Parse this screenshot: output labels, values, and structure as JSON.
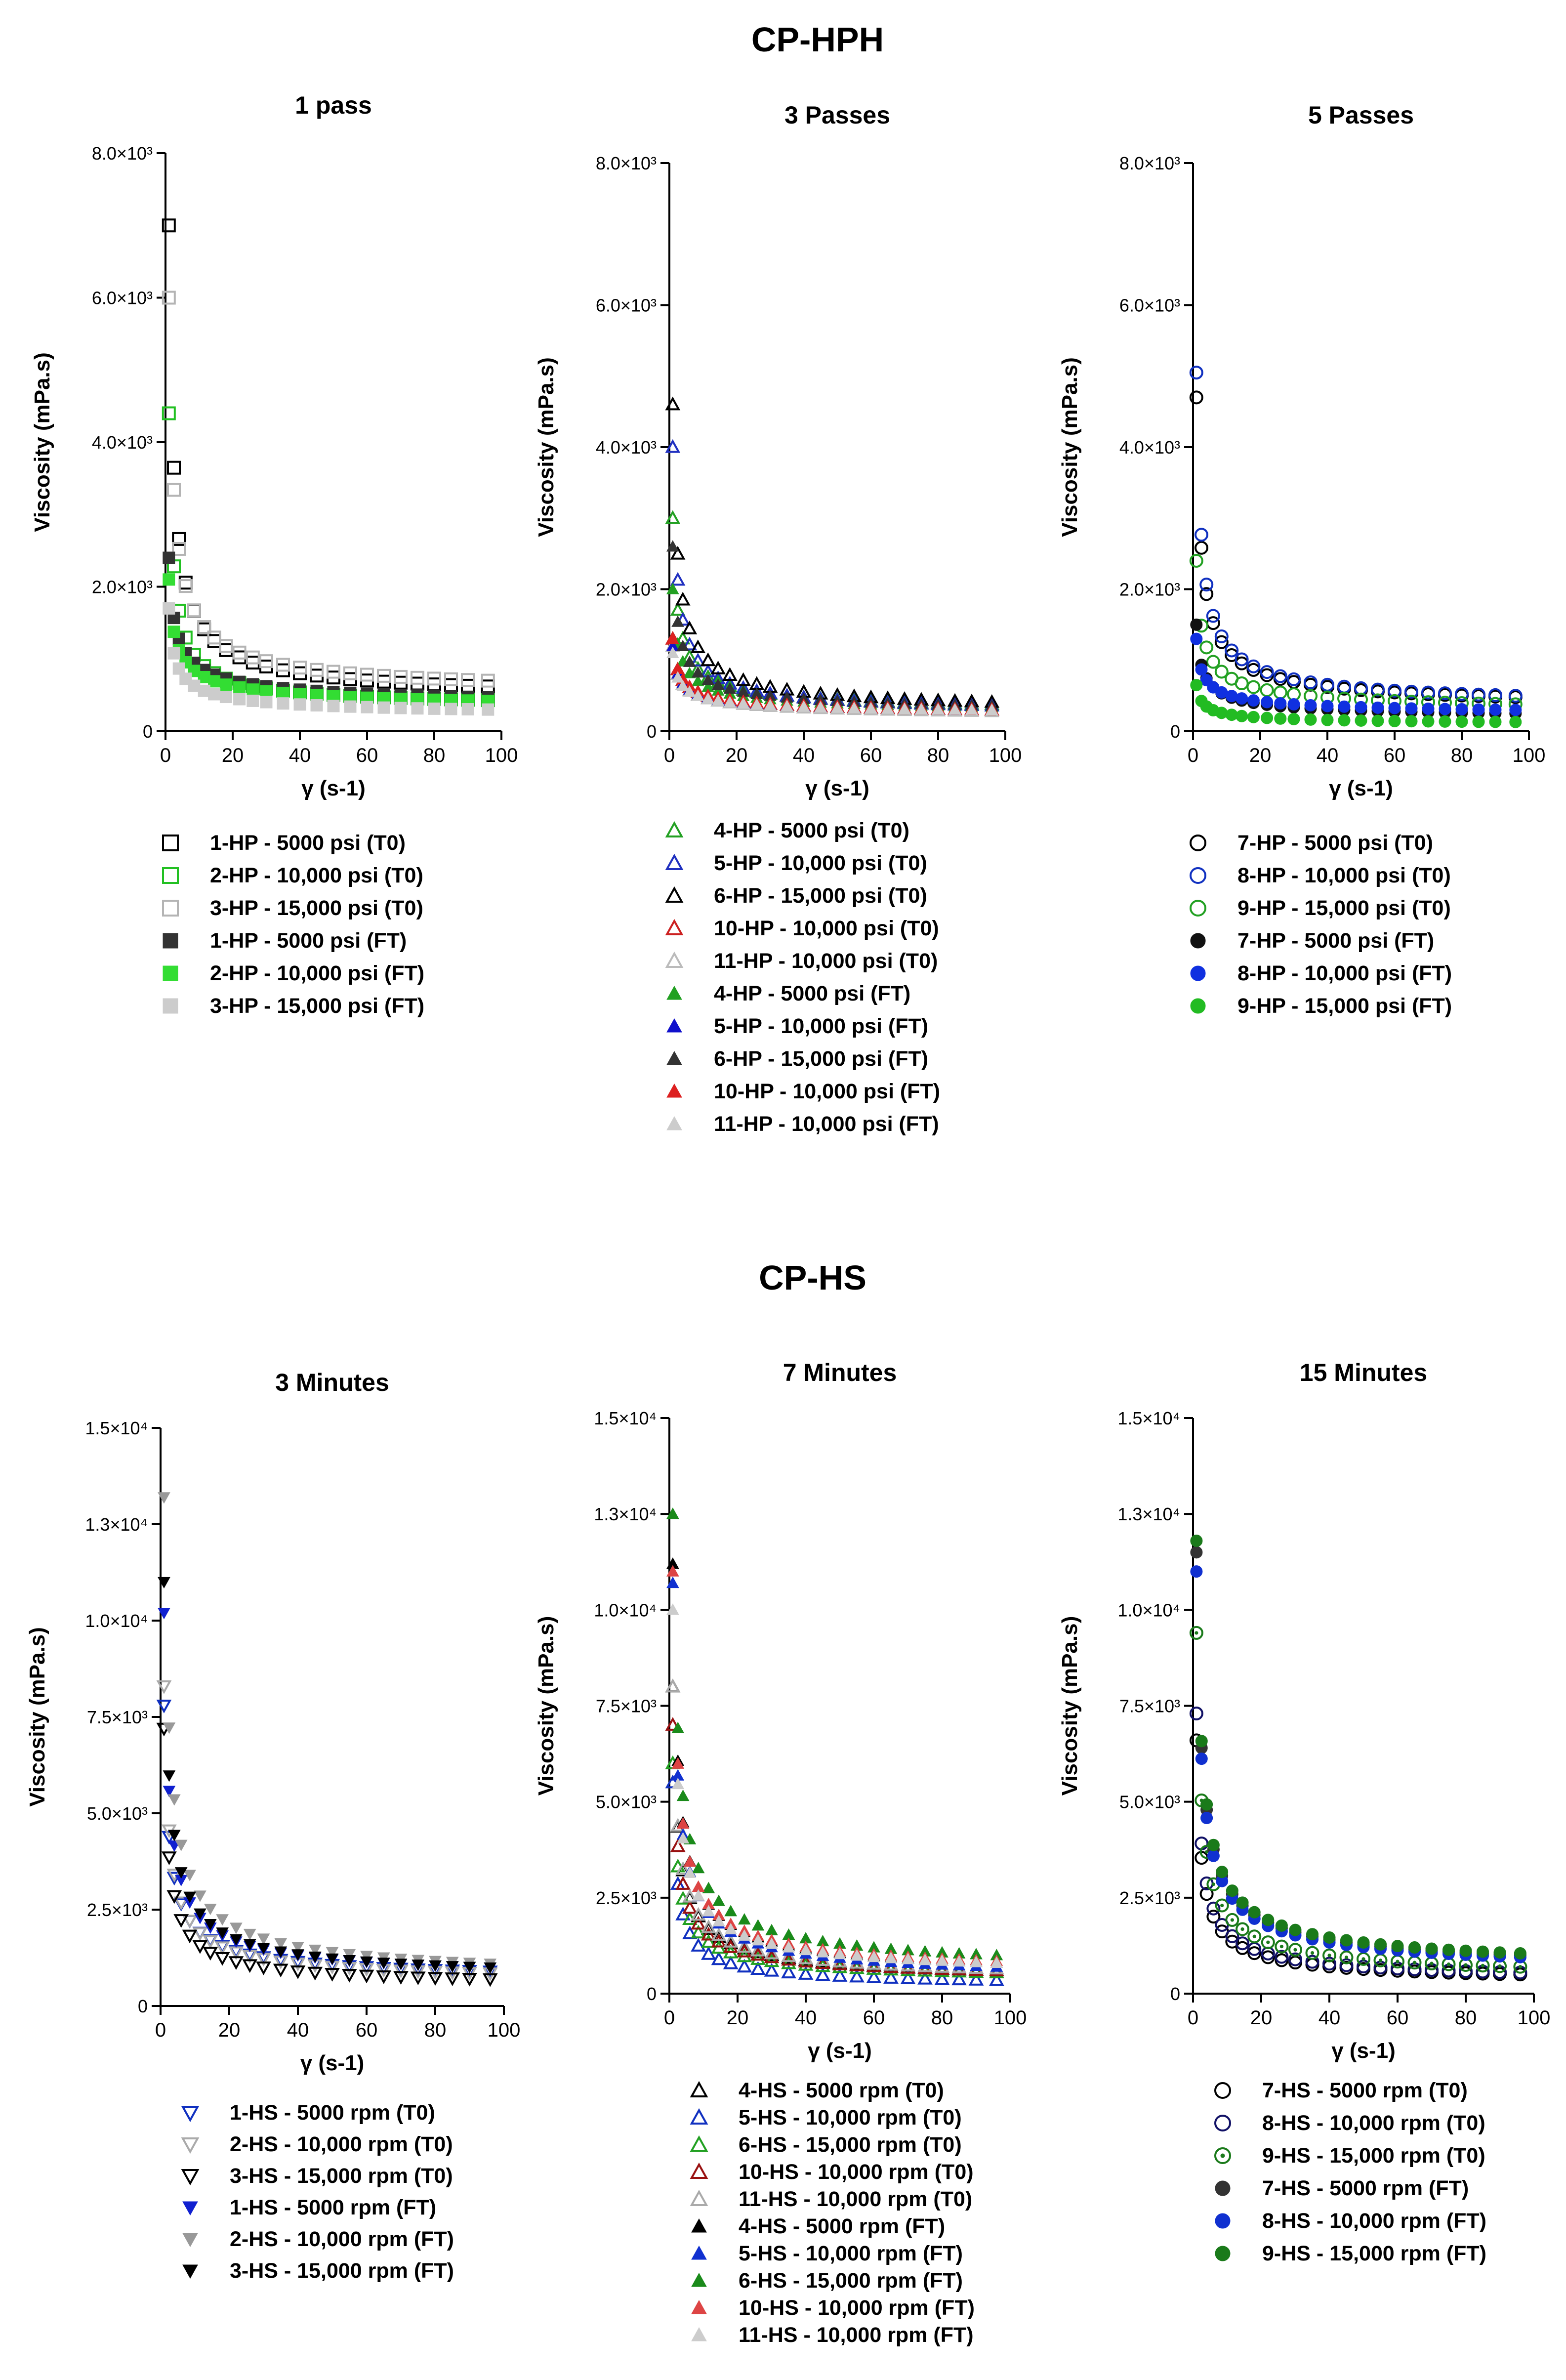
{
  "sections": [
    {
      "title": "CP-HPH"
    },
    {
      "title": "CP-HS"
    }
  ],
  "chart_data": [
    {
      "type": "scatter",
      "title": "1 pass",
      "xlabel": "γ (s-1)",
      "ylabel": "Viscosity (mPa.s)",
      "xlim": [
        0,
        100
      ],
      "ylim": [
        0,
        8000
      ],
      "xticks": [
        "0",
        "20",
        "40",
        "60",
        "80",
        "100"
      ],
      "yticks": [
        "0",
        "2.0×10³",
        "4.0×10³",
        "6.0×10³",
        "8.0×10³"
      ],
      "series": [
        {
          "name": "1-HP - 5000 psi (T0)",
          "marker": "square",
          "fill": "none",
          "color": "#000000",
          "y0": 7000,
          "yEnd": 620,
          "p": 0.78
        },
        {
          "name": "2-HP - 10,000 psi (T0)",
          "marker": "square",
          "fill": "none",
          "color": "#22c022",
          "y0": 4400,
          "yEnd": 430,
          "p": 0.8
        },
        {
          "name": "3-HP - 15,000 psi (T0)",
          "marker": "square",
          "fill": "none",
          "color": "#b4b4b4",
          "y0": 6000,
          "yEnd": 700,
          "p": 0.72
        },
        {
          "name": "1-HP - 5000 psi (FT)",
          "marker": "square",
          "fill": "solid",
          "color": "#333333",
          "y0": 2400,
          "yEnd": 470,
          "p": 0.55
        },
        {
          "name": "2-HP - 10,000 psi (FT)",
          "marker": "square",
          "fill": "solid",
          "color": "#33dd33",
          "y0": 2100,
          "yEnd": 420,
          "p": 0.55
        },
        {
          "name": "3-HP - 15,000 psi (FT)",
          "marker": "square",
          "fill": "solid",
          "color": "#cccccc",
          "y0": 1700,
          "yEnd": 300,
          "p": 0.58
        }
      ]
    },
    {
      "type": "scatter",
      "title": "3 Passes",
      "xlabel": "γ (s-1)",
      "ylabel": "Viscosity (mPa.s)",
      "xlim": [
        0,
        100
      ],
      "ylim": [
        0,
        8000
      ],
      "xticks": [
        "0",
        "20",
        "40",
        "60",
        "80",
        "100"
      ],
      "yticks": [
        "0",
        "2.0×10³",
        "4.0×10³",
        "6.0×10³",
        "8.0×10³"
      ],
      "series": [
        {
          "name": "4-HP - 5000 psi (T0)",
          "marker": "triangle",
          "fill": "none",
          "color": "#22a022",
          "y0": 3000,
          "yEnd": 380,
          "p": 0.7
        },
        {
          "name": "5-HP - 10,000 psi (T0)",
          "marker": "triangle",
          "fill": "none",
          "color": "#2030c0",
          "y0": 4000,
          "yEnd": 360,
          "p": 0.75
        },
        {
          "name": "6-HP - 15,000 psi (T0)",
          "marker": "triangle",
          "fill": "none",
          "color": "#000000",
          "y0": 4600,
          "yEnd": 410,
          "p": 0.72
        },
        {
          "name": "10-HP - 10,000 psi (T0)",
          "marker": "triangle",
          "fill": "none",
          "color": "#cc2020",
          "y0": 1300,
          "yEnd": 300,
          "p": 0.55
        },
        {
          "name": "11-HP - 10,000 psi (T0)",
          "marker": "triangle",
          "fill": "none",
          "color": "#bbbbbb",
          "y0": 1200,
          "yEnd": 280,
          "p": 0.55
        },
        {
          "name": "4-HP - 5000 psi (FT)",
          "marker": "triangle",
          "fill": "solid",
          "color": "#22a022",
          "y0": 2000,
          "yEnd": 340,
          "p": 0.62
        },
        {
          "name": "5-HP - 10,000 psi (FT)",
          "marker": "triangle",
          "fill": "solid",
          "color": "#1010cc",
          "y0": 1200,
          "yEnd": 300,
          "p": 0.55
        },
        {
          "name": "6-HP - 15,000 psi (FT)",
          "marker": "triangle",
          "fill": "solid",
          "color": "#333333",
          "y0": 2600,
          "yEnd": 360,
          "p": 0.65
        },
        {
          "name": "10-HP - 10,000 psi (FT)",
          "marker": "triangle",
          "fill": "solid",
          "color": "#dd2020",
          "y0": 1300,
          "yEnd": 320,
          "p": 0.55
        },
        {
          "name": "11-HP - 10,000 psi (FT)",
          "marker": "triangle",
          "fill": "solid",
          "color": "#cccccc",
          "y0": 1100,
          "yEnd": 300,
          "p": 0.55
        }
      ]
    },
    {
      "type": "scatter",
      "title": "5 Passes",
      "xlabel": "γ (s-1)",
      "ylabel": "Viscosity (mPa.s)",
      "xlim": [
        0,
        100
      ],
      "ylim": [
        0,
        8000
      ],
      "xticks": [
        "0",
        "20",
        "40",
        "60",
        "80",
        "100"
      ],
      "yticks": [
        "0",
        "2.0×10³",
        "4.0×10³",
        "6.0×10³",
        "8.0×10³"
      ],
      "series": [
        {
          "name": "7-HP - 5000 psi (T0)",
          "marker": "circle",
          "fill": "none",
          "color": "#000000",
          "y0": 4700,
          "yEnd": 480,
          "p": 0.72
        },
        {
          "name": "8-HP -  10,000 psi (T0)",
          "marker": "circle",
          "fill": "none",
          "color": "#1030c0",
          "y0": 5050,
          "yEnd": 500,
          "p": 0.72
        },
        {
          "name": "9-HP - 15,000 psi (T0)",
          "marker": "circle",
          "fill": "none",
          "color": "#22a022",
          "y0": 2400,
          "yEnd": 380,
          "p": 0.6
        },
        {
          "name": "7-HP - 5000 psi (FT)",
          "marker": "circle",
          "fill": "solid",
          "color": "#111111",
          "y0": 1500,
          "yEnd": 250,
          "p": 0.6
        },
        {
          "name": "8-HP - 10,000 psi (FT)",
          "marker": "circle",
          "fill": "solid",
          "color": "#1030e0",
          "y0": 1300,
          "yEnd": 300,
          "p": 0.55
        },
        {
          "name": "9-HP - 15,000 psi (FT)",
          "marker": "circle",
          "fill": "solid",
          "color": "#22bb22",
          "y0": 650,
          "yEnd": 130,
          "p": 0.55
        }
      ]
    },
    {
      "type": "scatter",
      "title": "3 Minutes",
      "xlabel": "γ (s-1)",
      "ylabel": "Viscosity (mPa.s)",
      "xlim": [
        0,
        100
      ],
      "ylim": [
        0,
        15000
      ],
      "xticks": [
        "0",
        "20",
        "40",
        "60",
        "80",
        "100"
      ],
      "yticks": [
        "0",
        "2.5×10³",
        "5.0×10³",
        "7.5×10³",
        "1.0×10⁴",
        "1.3×10⁴",
        "1.5×10⁴"
      ],
      "series": [
        {
          "name": "1-HS - 5000 rpm (T0)",
          "marker": "tri-down",
          "fill": "none",
          "color": "#1030c0",
          "y0": 7800,
          "yEnd": 900,
          "p": 0.7
        },
        {
          "name": "2-HS - 10,000 rpm (T0)",
          "marker": "tri-down",
          "fill": "none",
          "color": "#aaaaaa",
          "y0": 8300,
          "yEnd": 850,
          "p": 0.72
        },
        {
          "name": "3-HS - 15,000 rpm (T0)",
          "marker": "tri-down",
          "fill": "none",
          "color": "#000000",
          "y0": 7200,
          "yEnd": 700,
          "p": 0.75
        },
        {
          "name": "1-HS - 5000 rpm (FT)",
          "marker": "tri-down",
          "fill": "solid",
          "color": "#1020d0",
          "y0": 10200,
          "yEnd": 1000,
          "p": 0.72
        },
        {
          "name": "2-HS - 10,000 rpm (FT)",
          "marker": "tri-down",
          "fill": "solid",
          "color": "#999999",
          "y0": 13200,
          "yEnd": 1100,
          "p": 0.7
        },
        {
          "name": "3-HS - 15,000 rpm (FT)",
          "marker": "tri-down",
          "fill": "solid",
          "color": "#000000",
          "y0": 11000,
          "yEnd": 1000,
          "p": 0.72
        }
      ]
    },
    {
      "type": "scatter",
      "title": "7 Minutes",
      "xlabel": "γ (s-1)",
      "ylabel": "Viscosity (mPa.s)",
      "xlim": [
        0,
        100
      ],
      "ylim": [
        0,
        15000
      ],
      "xticks": [
        "0",
        "20",
        "40",
        "60",
        "80",
        "100"
      ],
      "yticks": [
        "0",
        "2.5×10³",
        "5.0×10³",
        "7.5×10³",
        "1.0×10⁴",
        "1.3×10⁴",
        "1.5×10⁴"
      ],
      "series": [
        {
          "name": "4-HS - 5000 rpm (T0)",
          "marker": "triangle",
          "fill": "none",
          "color": "#000000",
          "y0": 8000,
          "yEnd": 600,
          "p": 0.7
        },
        {
          "name": "5-HS - 10,000 rpm (T0)",
          "marker": "triangle",
          "fill": "none",
          "color": "#1030c0",
          "y0": 5500,
          "yEnd": 350,
          "p": 0.75
        },
        {
          "name": "6-HS - 15,000 rpm (T0)",
          "marker": "triangle",
          "fill": "none",
          "color": "#22a022",
          "y0": 6000,
          "yEnd": 550,
          "p": 0.7
        },
        {
          "name": "10-HS - 10,000 rpm (T0)",
          "marker": "triangle",
          "fill": "none",
          "color": "#991111",
          "y0": 7000,
          "yEnd": 600,
          "p": 0.7
        },
        {
          "name": "11-HS - 10,000 rpm (T0)",
          "marker": "triangle",
          "fill": "none",
          "color": "#aaaaaa",
          "y0": 8000,
          "yEnd": 650,
          "p": 0.7
        },
        {
          "name": "4-HS - 5000 rpm (FT)",
          "marker": "triangle",
          "fill": "solid",
          "color": "#000000",
          "y0": 11200,
          "yEnd": 800,
          "p": 0.7
        },
        {
          "name": "5-HS - 10,000 rpm (FT)",
          "marker": "triangle",
          "fill": "solid",
          "color": "#1030d0",
          "y0": 10700,
          "yEnd": 700,
          "p": 0.72
        },
        {
          "name": "6-HS - 15,000 rpm (FT)",
          "marker": "triangle",
          "fill": "solid",
          "color": "#1a8a1a",
          "y0": 12500,
          "yEnd": 1000,
          "p": 0.68
        },
        {
          "name": "10-HS - 10,000 rpm (FT)",
          "marker": "triangle",
          "fill": "solid",
          "color": "#dd4444",
          "y0": 11000,
          "yEnd": 850,
          "p": 0.7
        },
        {
          "name": "11-HS - 10,000 rpm (FT)",
          "marker": "triangle",
          "fill": "solid",
          "color": "#cccccc",
          "y0": 10000,
          "yEnd": 800,
          "p": 0.7
        }
      ]
    },
    {
      "type": "scatter",
      "title": "15 Minutes",
      "xlabel": "γ (s-1)",
      "ylabel": "Viscosity (mPa.s)",
      "xlim": [
        0,
        100
      ],
      "ylim": [
        0,
        15000
      ],
      "xticks": [
        "0",
        "20",
        "40",
        "60",
        "80",
        "100"
      ],
      "yticks": [
        "0",
        "2.5×10³",
        "5.0×10³",
        "7.5×10³",
        "1.0×10⁴",
        "1.3×10⁴",
        "1.5×10⁴"
      ],
      "series": [
        {
          "name": "7-HS - 5000 rpm (T0)",
          "marker": "circle",
          "fill": "none",
          "color": "#000000",
          "y0": 6600,
          "yEnd": 500,
          "p": 0.72
        },
        {
          "name": "8-HS - 10,000 rpm (T0)",
          "marker": "circle",
          "fill": "none",
          "color": "#111166",
          "y0": 7300,
          "yEnd": 550,
          "p": 0.72
        },
        {
          "name": "9-HS - 15,000 rpm (T0)",
          "marker": "circle-dot",
          "fill": "none",
          "color": "#1a7a1a",
          "y0": 9400,
          "yEnd": 700,
          "p": 0.72
        },
        {
          "name": "7-HS - 5000 rpm (FT)",
          "marker": "circle",
          "fill": "solid",
          "color": "#333333",
          "y0": 11500,
          "yEnd": 1000,
          "p": 0.68
        },
        {
          "name": "8-HS - 10,000 rpm (FT)",
          "marker": "circle",
          "fill": "solid",
          "color": "#1030d0",
          "y0": 11000,
          "yEnd": 950,
          "p": 0.68
        },
        {
          "name": "9-HS - 15,000 rpm (FT)",
          "marker": "circle",
          "fill": "solid",
          "color": "#1a7a1a",
          "y0": 11800,
          "yEnd": 1050,
          "p": 0.68
        }
      ]
    }
  ]
}
